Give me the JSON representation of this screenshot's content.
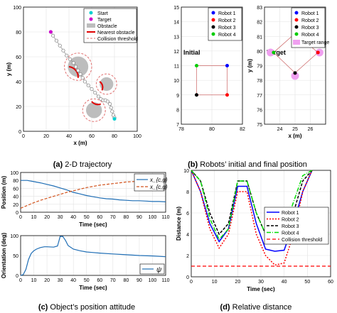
{
  "captions": {
    "a": {
      "tag": "(a)",
      "text": "2-D trajectory"
    },
    "b": {
      "tag": "(b)",
      "text": "Robots’ initial and final position"
    },
    "c": {
      "tag": "(c)",
      "text": "Object’s position attitude"
    },
    "d": {
      "tag": "(d)",
      "text": "Relative distance"
    }
  },
  "chart_data": [
    {
      "id": "trajectory",
      "type": "scatter",
      "xlabel": "x (m)",
      "ylabel": "y (m)",
      "xlim": [
        0,
        100
      ],
      "ylim": [
        0,
        100
      ],
      "xticks": [
        0,
        20,
        40,
        60,
        80,
        100
      ],
      "yticks": [
        0,
        20,
        40,
        60,
        80,
        100
      ],
      "grid": true,
      "legend": [
        "Start",
        "Target",
        "Obstacle",
        "Nearest obstacle",
        "Collision threshold"
      ],
      "legend_position": "top-right",
      "colors": {
        "start": "#00d0d0",
        "target": "#d000d0",
        "obstacle": "#bdbdbd",
        "nearest": "#e00000",
        "threshold": "#e07070",
        "path": "#777777"
      },
      "start": [
        80,
        10
      ],
      "target": [
        24,
        80
      ],
      "obstacles": [
        {
          "x": 48,
          "y": 52,
          "r": 9
        },
        {
          "x": 73,
          "y": 38,
          "r": 6
        },
        {
          "x": 62,
          "y": 17,
          "r": 7
        }
      ],
      "threshold_margin": 3,
      "path": [
        [
          24,
          80
        ],
        [
          26,
          77
        ],
        [
          29,
          73
        ],
        [
          32,
          69
        ],
        [
          35,
          65
        ],
        [
          38,
          61
        ],
        [
          41,
          58
        ],
        [
          44,
          55
        ],
        [
          46,
          52
        ],
        [
          48,
          49
        ],
        [
          50,
          46
        ],
        [
          52,
          43
        ],
        [
          54,
          40
        ],
        [
          57,
          37
        ],
        [
          60,
          34
        ],
        [
          63,
          31
        ],
        [
          66,
          28
        ],
        [
          68,
          26
        ],
        [
          70,
          25
        ],
        [
          72,
          25
        ],
        [
          74,
          24
        ],
        [
          76,
          22
        ],
        [
          77,
          19
        ],
        [
          78,
          16
        ],
        [
          79,
          13
        ],
        [
          80,
          11
        ]
      ]
    },
    {
      "id": "initial",
      "type": "scatter",
      "title": "Initial",
      "xlim": [
        78,
        82
      ],
      "ylim": [
        7,
        15
      ],
      "xticks": [
        78,
        80,
        82
      ],
      "yticks": [
        7,
        8,
        9,
        10,
        11,
        12,
        13,
        14,
        15
      ],
      "grid": true,
      "legend": [
        "Robot 1",
        "Robot 2",
        "Robot 3",
        "Robot 4"
      ],
      "legend_position": "top-right",
      "series": [
        {
          "name": "Robot 1",
          "color": "#0000ff",
          "point": [
            81,
            11
          ]
        },
        {
          "name": "Robot 2",
          "color": "#ff0000",
          "point": [
            81,
            9
          ]
        },
        {
          "name": "Robot 3",
          "color": "#000000",
          "point": [
            79,
            9
          ]
        },
        {
          "name": "Robot 4",
          "color": "#00cc00",
          "point": [
            79,
            11
          ]
        }
      ]
    },
    {
      "id": "target",
      "type": "scatter",
      "title": "Target",
      "xlabel": "x (m)",
      "ylabel": "y (m)",
      "xlim": [
        23,
        27
      ],
      "ylim": [
        75,
        83
      ],
      "xticks": [
        24,
        25,
        26
      ],
      "yticks": [
        75,
        76,
        77,
        78,
        79,
        80,
        81,
        82,
        83
      ],
      "grid": true,
      "legend": [
        "Robot 1",
        "Robot 2",
        "Robot 3",
        "Robot 4",
        "Target range"
      ],
      "legend_position": "top-right",
      "target_range_color": "#f0a0f0",
      "series": [
        {
          "name": "Robot 1",
          "color": "#0000ff",
          "point": [
            25,
            81.2
          ]
        },
        {
          "name": "Robot 2",
          "color": "#ff0000",
          "point": [
            26.5,
            79.9
          ]
        },
        {
          "name": "Robot 3",
          "color": "#000000",
          "point": [
            25,
            78.5
          ]
        },
        {
          "name": "Robot 4",
          "color": "#00cc00",
          "point": [
            23.6,
            79.9
          ]
        }
      ],
      "ranges": [
        [
          25,
          81.4
        ],
        [
          26.6,
          79.9
        ],
        [
          25,
          78.3
        ],
        [
          23.4,
          79.9
        ]
      ]
    },
    {
      "id": "position",
      "type": "line",
      "xlabel": "Time (sec)",
      "ylabel": "Position (m)",
      "xlim": [
        0,
        110
      ],
      "ylim": [
        0,
        100
      ],
      "xticks": [
        0,
        10,
        20,
        30,
        40,
        50,
        60,
        70,
        80,
        90,
        100,
        110
      ],
      "yticks": [
        0,
        20,
        40,
        60,
        80,
        100
      ],
      "grid": true,
      "legend_position": "top-right",
      "series": [
        {
          "name": "x_{c,g}",
          "color": "#1f6eb5",
          "dash": false,
          "x": [
            0,
            5,
            10,
            15,
            20,
            25,
            30,
            35,
            40,
            45,
            50,
            55,
            60,
            65,
            70,
            75,
            80,
            85,
            90,
            95,
            100,
            105,
            110
          ],
          "y": [
            80,
            80,
            77,
            74,
            70,
            66,
            61,
            56,
            50,
            46,
            42,
            39,
            36,
            34,
            33,
            31,
            30,
            29,
            29,
            28,
            27,
            27,
            26
          ]
        },
        {
          "name": "x_{c,g}",
          "color": "#d2541e",
          "dash": true,
          "x": [
            0,
            5,
            10,
            15,
            20,
            25,
            30,
            35,
            40,
            45,
            50,
            55,
            60,
            65,
            70,
            75,
            80,
            85,
            90,
            95,
            100,
            105,
            110
          ],
          "y": [
            10,
            17,
            24,
            30,
            35,
            40,
            45,
            50,
            54,
            58,
            62,
            65,
            68,
            70,
            72,
            74,
            76,
            77,
            78,
            79,
            79,
            80,
            80
          ]
        }
      ]
    },
    {
      "id": "orientation",
      "type": "line",
      "xlabel": "Time (sec)",
      "ylabel": "Orientation (deg)",
      "xlim": [
        0,
        110
      ],
      "ylim": [
        0,
        100
      ],
      "xticks": [
        0,
        10,
        20,
        30,
        40,
        50,
        60,
        70,
        80,
        90,
        100,
        110
      ],
      "yticks": [
        0,
        50,
        100
      ],
      "grid": true,
      "legend_position": "bottom-right",
      "series": [
        {
          "name": "ψ",
          "color": "#1f6eb5",
          "dash": false,
          "x": [
            0,
            2,
            4,
            6,
            8,
            10,
            12,
            15,
            18,
            20,
            25,
            28,
            30,
            32,
            34,
            36,
            40,
            45,
            50,
            60,
            70,
            80,
            90,
            100,
            110
          ],
          "y": [
            0,
            2,
            15,
            40,
            55,
            62,
            66,
            70,
            72,
            72,
            71,
            74,
            98,
            98,
            88,
            75,
            66,
            62,
            59,
            56,
            54,
            52,
            50,
            49,
            47
          ]
        }
      ]
    },
    {
      "id": "distance",
      "type": "line",
      "xlabel": "Time (sec)",
      "ylabel": "Distance (m)",
      "xlim": [
        0,
        60
      ],
      "ylim": [
        0,
        10
      ],
      "xticks": [
        0,
        10,
        20,
        30,
        40,
        50,
        60
      ],
      "yticks": [
        0,
        2,
        4,
        6,
        8,
        10
      ],
      "grid": true,
      "legend": [
        "Robot 1",
        "Robot 2",
        "Robot 3",
        "Robot 4",
        "Collision threshold"
      ],
      "legend_position": "bottom-right",
      "threshold": 1,
      "series": [
        {
          "name": "Robot 1",
          "color": "#0000ff",
          "dash": "",
          "x": [
            0,
            4,
            8,
            12,
            16,
            20,
            24,
            28,
            32,
            36,
            40,
            44,
            48,
            52
          ],
          "y": [
            10,
            8,
            5,
            3.3,
            4.5,
            8.5,
            8.5,
            5,
            2.6,
            2.4,
            2.5,
            5,
            8,
            10
          ]
        },
        {
          "name": "Robot 2",
          "color": "#ff0000",
          "dash": "2,2",
          "x": [
            0,
            4,
            8,
            12,
            16,
            20,
            24,
            28,
            32,
            36,
            40,
            44,
            48,
            52
          ],
          "y": [
            10,
            8,
            4.5,
            2.7,
            4,
            8,
            8,
            4,
            2,
            1.1,
            1.3,
            4,
            8,
            10
          ]
        },
        {
          "name": "Robot 3",
          "color": "#000000",
          "dash": "4,2",
          "x": [
            0,
            4,
            8,
            12,
            16,
            20,
            24,
            28,
            32,
            36,
            40,
            44,
            48,
            52
          ],
          "y": [
            10,
            9,
            6,
            4,
            5,
            9,
            9,
            6,
            4,
            3.2,
            3.5,
            6,
            9,
            10
          ]
        },
        {
          "name": "Robot 4",
          "color": "#00dd00",
          "dash": "6,2,1,2",
          "x": [
            0,
            4,
            8,
            12,
            16,
            20,
            24,
            28,
            32,
            36,
            40,
            44,
            48,
            52
          ],
          "y": [
            10,
            9,
            5.5,
            3.5,
            4.5,
            9,
            9,
            6,
            4,
            3.8,
            4.5,
            7,
            9.5,
            10
          ]
        }
      ]
    }
  ]
}
